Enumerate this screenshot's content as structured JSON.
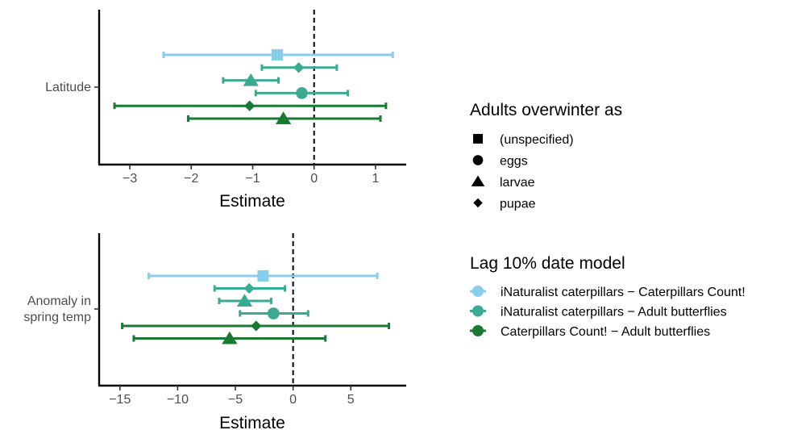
{
  "chart_data": [
    {
      "type": "forest",
      "ylabel": "",
      "xlabel": "Estimate",
      "category": "Latitude",
      "xlim": [
        -3.5,
        1.5
      ],
      "xticks": [
        -3,
        -2,
        -1,
        0,
        1
      ],
      "xtick_labels": [
        "−3",
        "−2",
        "−1",
        "0",
        "1"
      ],
      "reference_line": 0,
      "points": [
        {
          "model": "iNaturalist caterpillars − Caterpillars Count!",
          "overwinter": "(unspecified)",
          "estimate": -0.6,
          "low": -2.45,
          "high": 1.28
        },
        {
          "model": "iNaturalist caterpillars − Adult butterflies",
          "overwinter": "pupae",
          "estimate": -0.25,
          "low": -0.85,
          "high": 0.37
        },
        {
          "model": "iNaturalist caterpillars − Adult butterflies",
          "overwinter": "larvae",
          "estimate": -1.03,
          "low": -1.48,
          "high": -0.58
        },
        {
          "model": "iNaturalist caterpillars − Adult butterflies",
          "overwinter": "eggs",
          "estimate": -0.2,
          "low": -0.95,
          "high": 0.55
        },
        {
          "model": "Caterpillars Count! − Adult butterflies",
          "overwinter": "pupae",
          "estimate": -1.05,
          "low": -3.25,
          "high": 1.17
        },
        {
          "model": "Caterpillars Count! − Adult butterflies",
          "overwinter": "larvae",
          "estimate": -0.5,
          "low": -2.05,
          "high": 1.08
        }
      ]
    },
    {
      "type": "forest",
      "ylabel": "",
      "xlabel": "Estimate",
      "category_lines": [
        "Anomaly in",
        "spring temp"
      ],
      "xlim": [
        -16.8,
        9.8
      ],
      "xticks": [
        -15,
        -10,
        -5,
        0,
        5
      ],
      "xtick_labels": [
        "−15",
        "−10",
        "−5",
        "0",
        "5"
      ],
      "reference_line": 0,
      "points": [
        {
          "model": "iNaturalist caterpillars − Caterpillars Count!",
          "overwinter": "(unspecified)",
          "estimate": -2.6,
          "low": -12.5,
          "high": 7.3
        },
        {
          "model": "iNaturalist caterpillars − Adult butterflies",
          "overwinter": "pupae",
          "estimate": -3.8,
          "low": -6.8,
          "high": -0.7
        },
        {
          "model": "iNaturalist caterpillars − Adult butterflies",
          "overwinter": "larvae",
          "estimate": -4.2,
          "low": -6.4,
          "high": -1.9
        },
        {
          "model": "iNaturalist caterpillars − Adult butterflies",
          "overwinter": "eggs",
          "estimate": -1.7,
          "low": -4.6,
          "high": 1.3
        },
        {
          "model": "Caterpillars Count! − Adult butterflies",
          "overwinter": "pupae",
          "estimate": -3.2,
          "low": -14.8,
          "high": 8.3
        },
        {
          "model": "Caterpillars Count! − Adult butterflies",
          "overwinter": "larvae",
          "estimate": -5.5,
          "low": -13.8,
          "high": 2.8
        }
      ]
    }
  ],
  "legend_shape": {
    "title": "Adults overwinter as",
    "entries": [
      {
        "label": "(unspecified)",
        "shape": "square"
      },
      {
        "label": "eggs",
        "shape": "circle"
      },
      {
        "label": "larvae",
        "shape": "triangle"
      },
      {
        "label": "pupae",
        "shape": "diamond"
      }
    ]
  },
  "legend_color": {
    "title": "Lag 10% date model",
    "entries": [
      {
        "label": "iNaturalist caterpillars − Caterpillars Count!",
        "color": "#87ceeb"
      },
      {
        "label": "iNaturalist caterpillars − Adult butterflies",
        "color": "#3aaa93"
      },
      {
        "label": "Caterpillars Count! − Adult butterflies",
        "color": "#1a7a34"
      }
    ]
  }
}
